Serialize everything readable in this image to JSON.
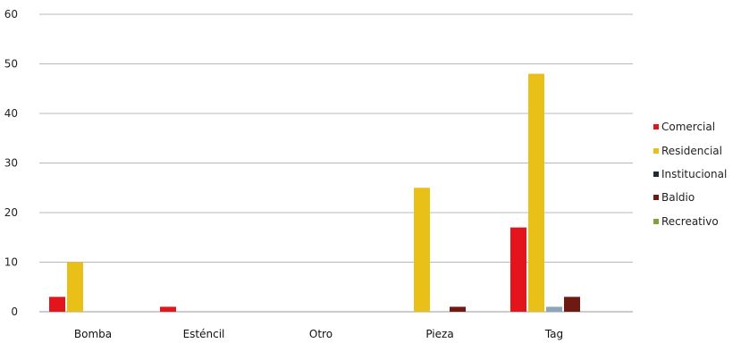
{
  "chart_data": {
    "type": "bar",
    "categories": [
      "Bomba",
      "Esténcil",
      "Otro",
      "Pieza",
      "Tag"
    ],
    "series": [
      {
        "name": "Comercial",
        "color": "#e3141b",
        "values": [
          3,
          1,
          0,
          0,
          17
        ]
      },
      {
        "name": "Residencial",
        "color": "#e8c017",
        "values": [
          10,
          0,
          0,
          25,
          48
        ]
      },
      {
        "name": "Institucional",
        "color": "#8aa6b8",
        "values": [
          0,
          0,
          0,
          0,
          1
        ]
      },
      {
        "name": "Baldío",
        "color": "#6e1a12",
        "values": [
          0,
          0,
          0,
          1,
          3
        ]
      },
      {
        "name": "Recreativo",
        "color": "#7fa33a",
        "values": [
          0,
          0,
          0,
          0,
          0
        ]
      }
    ],
    "legend_colors": [
      "#e3141b",
      "#e8c017",
      "#1f2a33",
      "#6e1a12",
      "#7fa33a"
    ],
    "legend_labels": [
      "Comercial",
      "Residencial",
      "Institucional",
      "Baldio",
      "Recreativo"
    ],
    "yticks": [
      "0",
      "10",
      "20",
      "30",
      "40",
      "50",
      "60"
    ],
    "ylim": [
      0,
      60
    ],
    "grid": true,
    "legend_position": "right"
  }
}
